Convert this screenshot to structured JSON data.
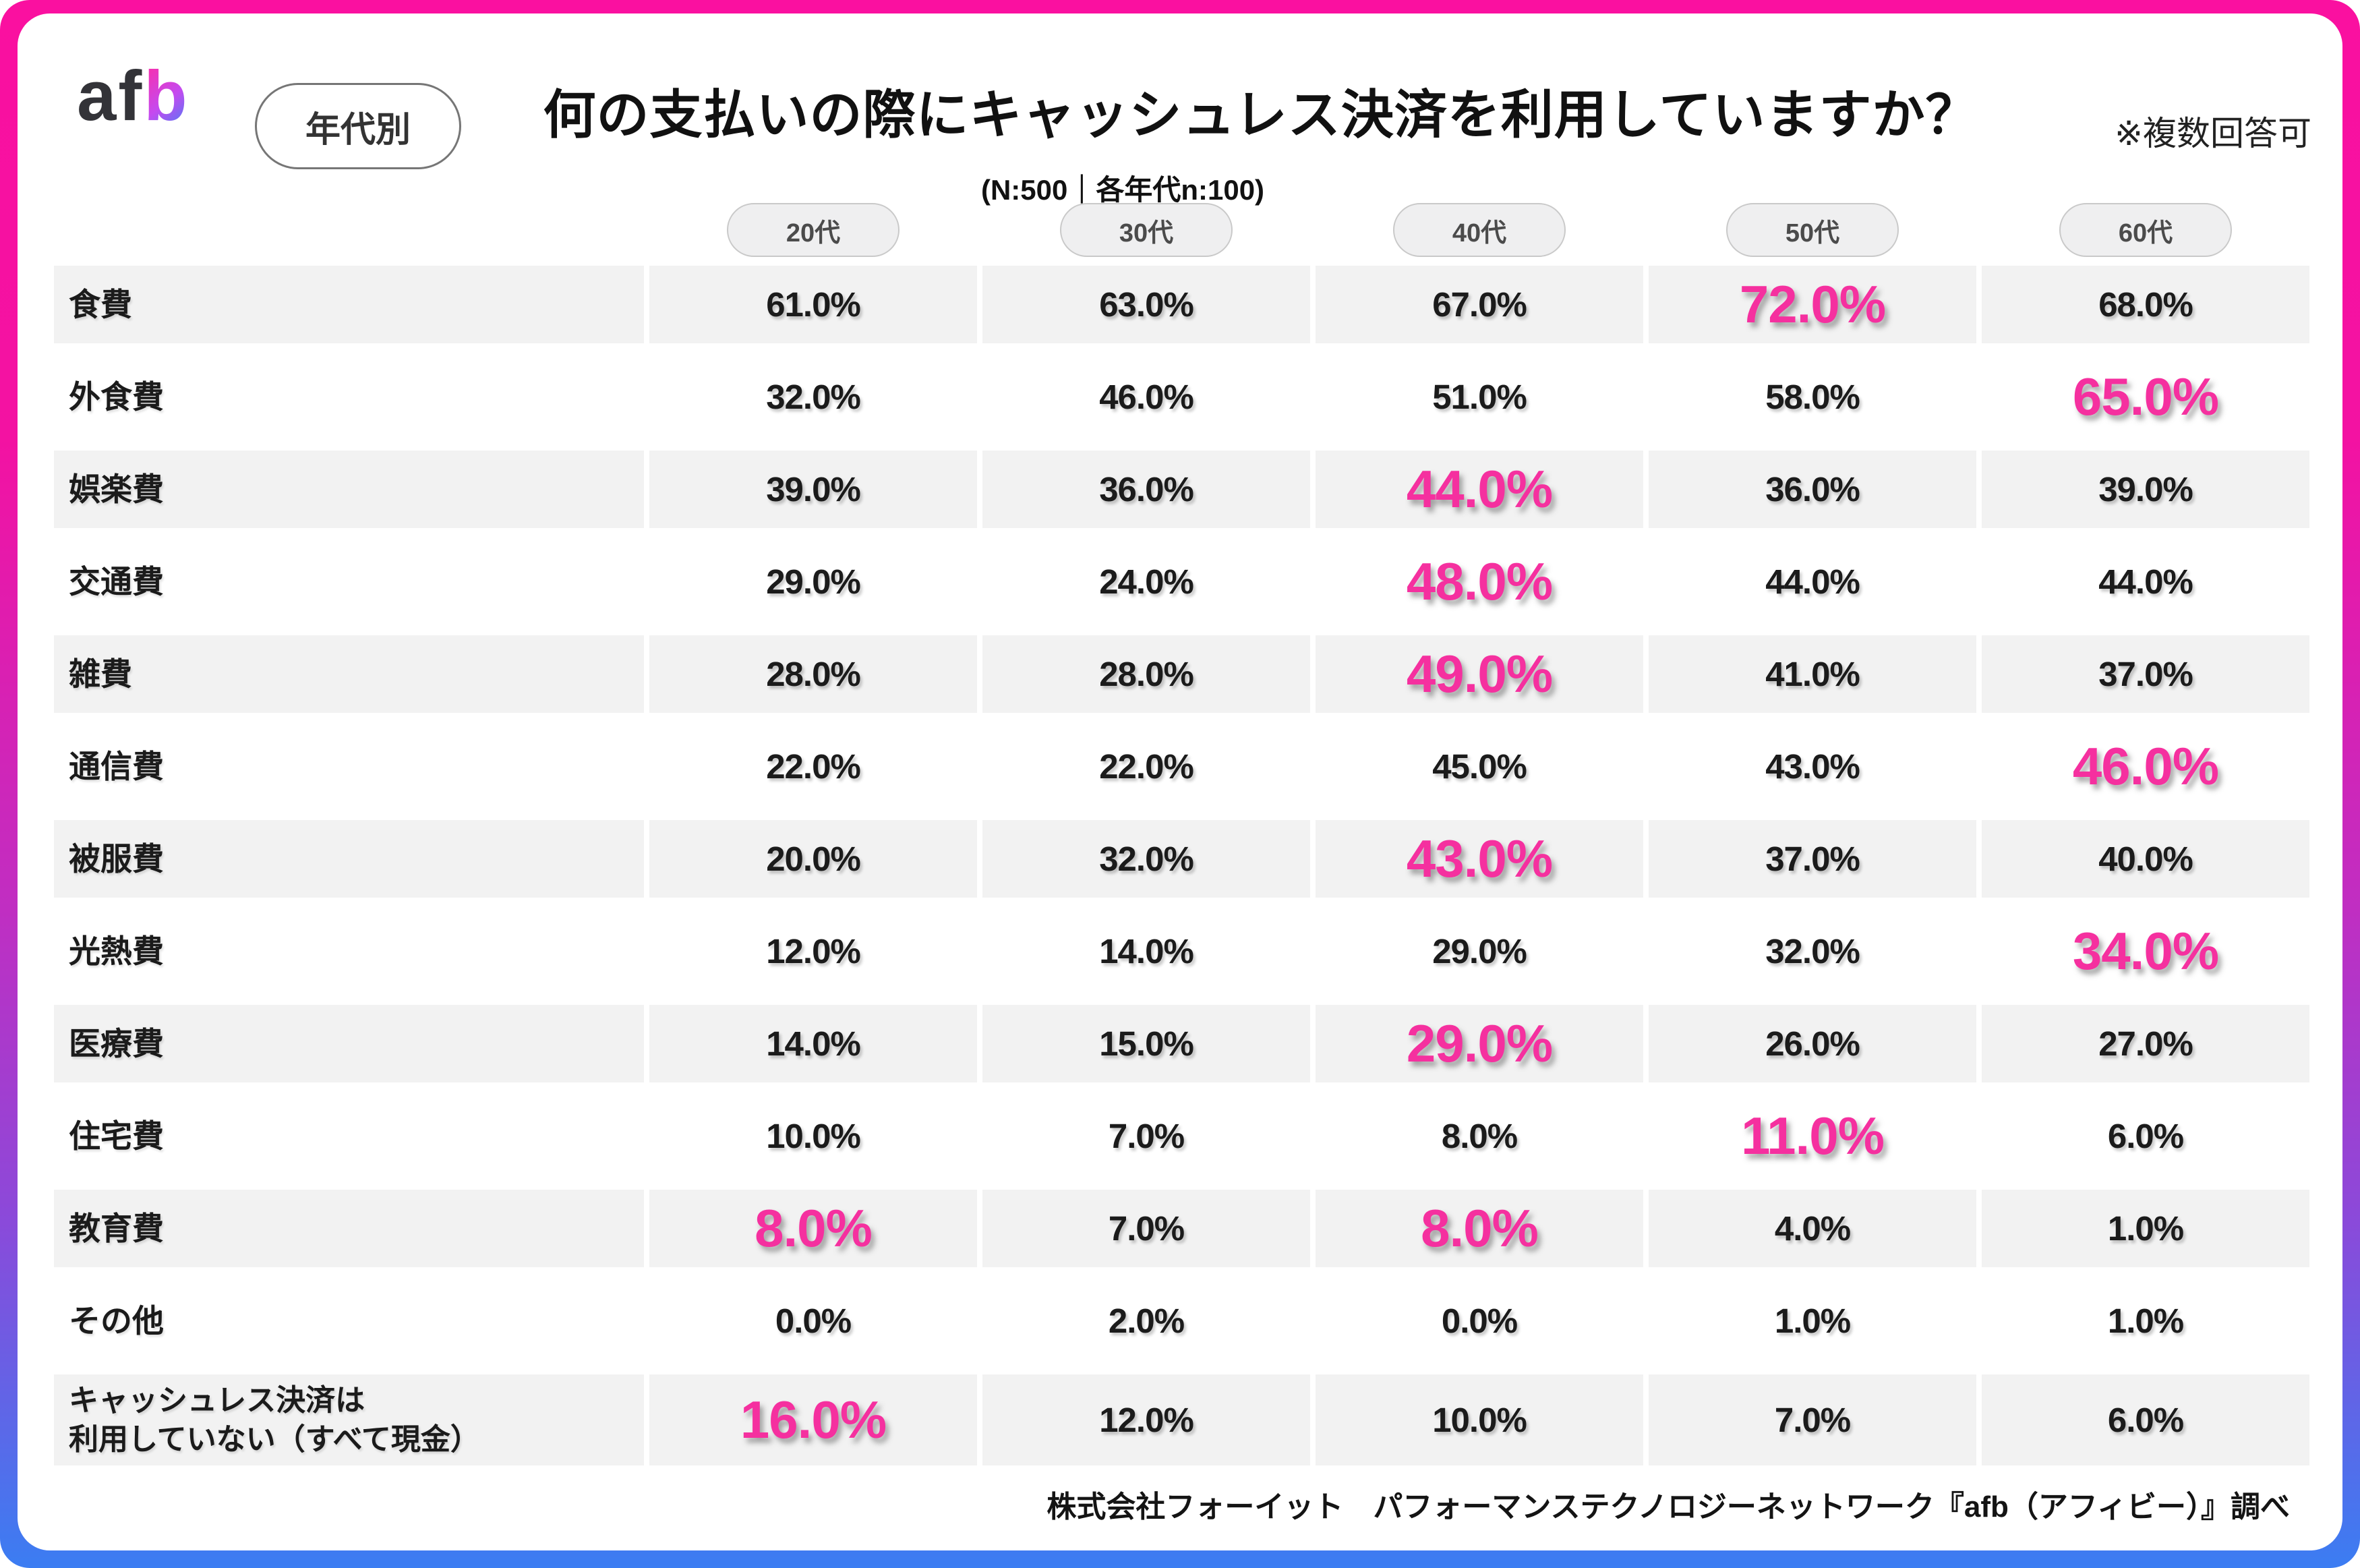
{
  "header": {
    "logo_af": "af",
    "logo_b": "b",
    "badge": "年代別",
    "title": "何の支払いの際にキャッシュレス決済を利用していますか？",
    "subtitle": "(N:500｜各年代n:100)",
    "note": "※複数回答可"
  },
  "footer": {
    "text": "株式会社フォーイット　パフォーマンステクノロジーネットワーク『afb（アフィビー）』調べ"
  },
  "colors": {
    "highlight_pink": "#f5309f",
    "row_band_gray": "#f2f2f2",
    "frame_gradient_top": "#fa10a0",
    "frame_gradient_mid": "#c02ec2",
    "frame_gradient_bottom": "#3b7df2",
    "logo_dark": "#333338",
    "logo_gradient": [
      "#ff2da4",
      "#c44af0",
      "#3b82f6"
    ]
  },
  "chart_data": {
    "type": "table",
    "title": "何の支払いの際にキャッシュレス決済を利用していますか？",
    "subtitle": "(N:500｜各年代n:100)",
    "note": "※複数回答可",
    "unit": "%",
    "categories": [
      "20代",
      "30代",
      "40代",
      "50代",
      "60代"
    ],
    "series": [
      {
        "name": "食費",
        "values": [
          61.0,
          63.0,
          67.0,
          72.0,
          68.0
        ],
        "highlights": [
          3
        ]
      },
      {
        "name": "外食費",
        "values": [
          32.0,
          46.0,
          51.0,
          58.0,
          65.0
        ],
        "highlights": [
          4
        ]
      },
      {
        "name": "娯楽費",
        "values": [
          39.0,
          36.0,
          44.0,
          36.0,
          39.0
        ],
        "highlights": [
          2
        ]
      },
      {
        "name": "交通費",
        "values": [
          29.0,
          24.0,
          48.0,
          44.0,
          44.0
        ],
        "highlights": [
          2
        ]
      },
      {
        "name": "雑費",
        "values": [
          28.0,
          28.0,
          49.0,
          41.0,
          37.0
        ],
        "highlights": [
          2
        ]
      },
      {
        "name": "通信費",
        "values": [
          22.0,
          22.0,
          45.0,
          43.0,
          46.0
        ],
        "highlights": [
          4
        ]
      },
      {
        "name": "被服費",
        "values": [
          20.0,
          32.0,
          43.0,
          37.0,
          40.0
        ],
        "highlights": [
          2
        ]
      },
      {
        "name": "光熱費",
        "values": [
          12.0,
          14.0,
          29.0,
          32.0,
          34.0
        ],
        "highlights": [
          4
        ]
      },
      {
        "name": "医療費",
        "values": [
          14.0,
          15.0,
          29.0,
          26.0,
          27.0
        ],
        "highlights": [
          2
        ]
      },
      {
        "name": "住宅費",
        "values": [
          10.0,
          7.0,
          8.0,
          11.0,
          6.0
        ],
        "highlights": [
          3
        ]
      },
      {
        "name": "教育費",
        "values": [
          8.0,
          7.0,
          8.0,
          4.0,
          1.0
        ],
        "highlights": [
          0,
          2
        ]
      },
      {
        "name": "その他",
        "values": [
          0.0,
          2.0,
          0.0,
          1.0,
          1.0
        ],
        "highlights": []
      },
      {
        "name": "キャッシュレス決済は\n利用していない（すべて現金）",
        "values": [
          16.0,
          12.0,
          10.0,
          7.0,
          6.0
        ],
        "highlights": [
          0
        ]
      }
    ]
  }
}
